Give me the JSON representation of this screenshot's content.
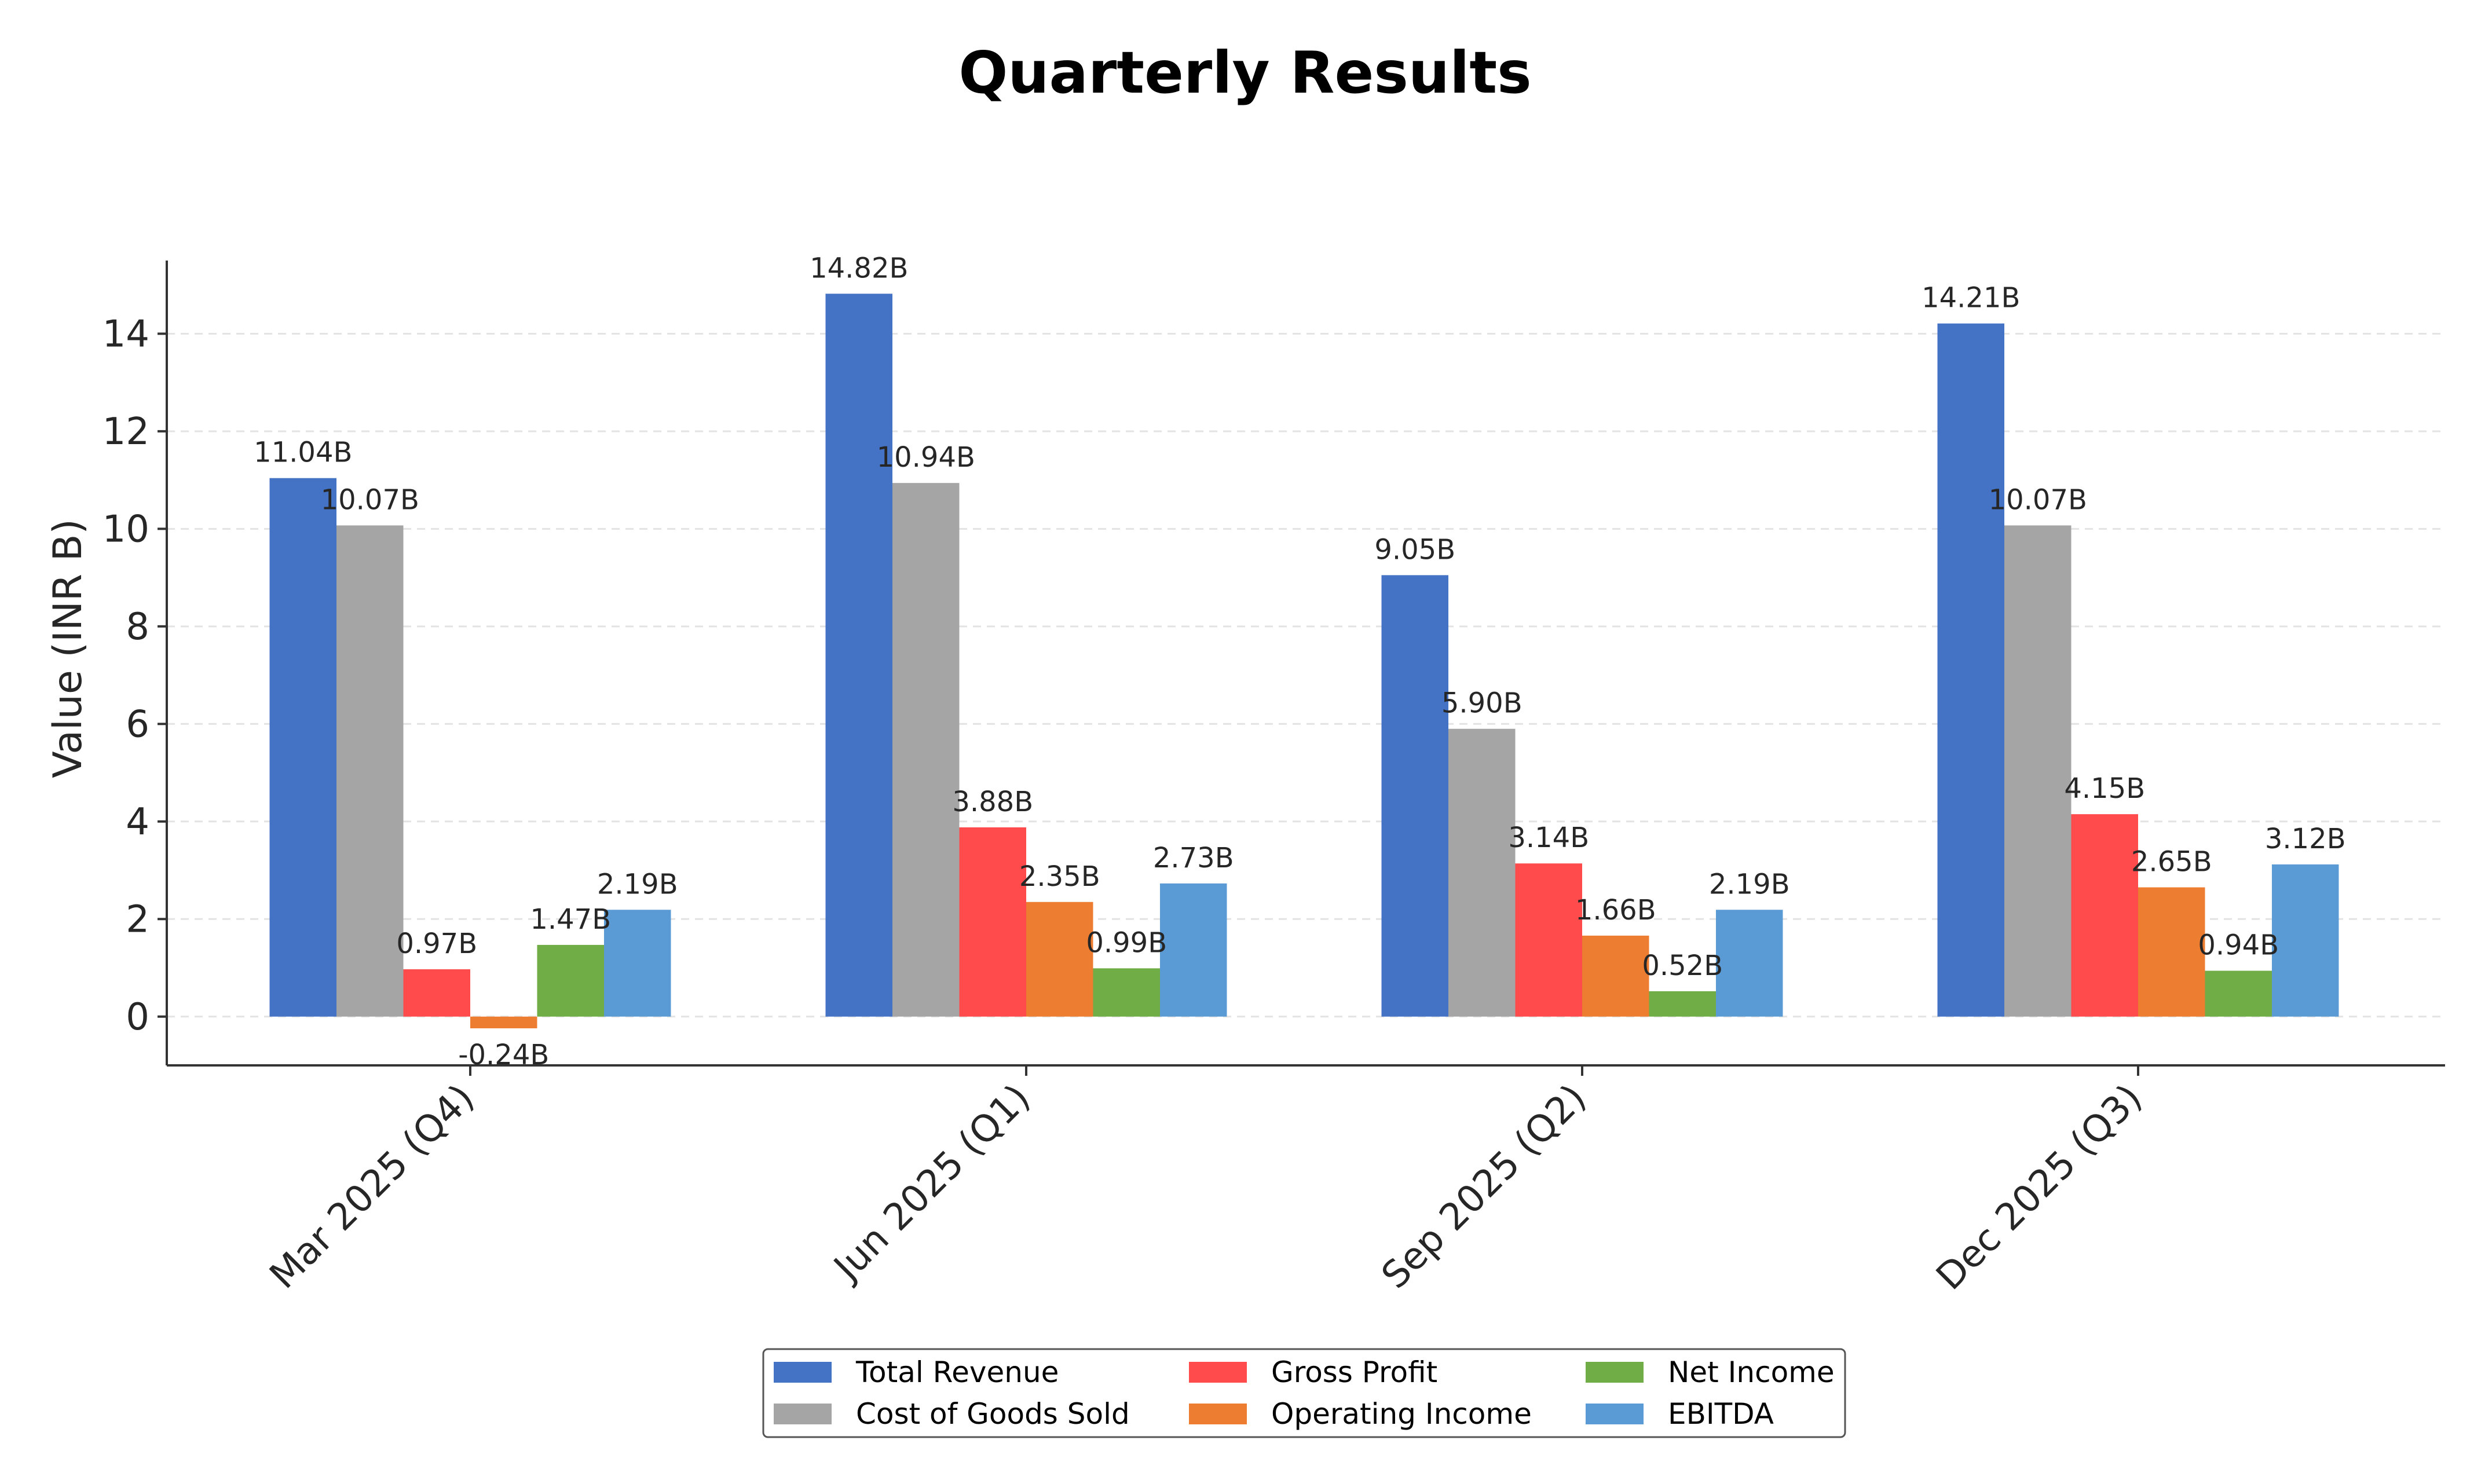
{
  "chart_data": {
    "type": "bar",
    "title": "Quarterly Results",
    "xlabel": "",
    "ylabel": "Value (INR B)",
    "ylim": [
      -1,
      15.5
    ],
    "yticks": [
      0,
      2,
      4,
      6,
      8,
      10,
      12,
      14
    ],
    "grid": "horizontal dashed",
    "legend_position": "bottom-center",
    "categories": [
      "Mar 2025 (Q4)",
      "Jun 2025 (Q1)",
      "Sep 2025 (Q2)",
      "Dec 2025 (Q3)"
    ],
    "series": [
      {
        "name": "Total Revenue",
        "color": "#4472C4",
        "values": [
          11.04,
          14.82,
          9.05,
          14.21
        ],
        "labels": [
          "11.04B",
          "14.82B",
          "9.05B",
          "14.21B"
        ]
      },
      {
        "name": "Cost of Goods Sold",
        "color": "#A5A5A5",
        "values": [
          10.07,
          10.94,
          5.9,
          10.07
        ],
        "labels": [
          "10.07B",
          "10.94B",
          "5.90B",
          "10.07B"
        ]
      },
      {
        "name": "Gross Profit",
        "color": "#FF4B4B",
        "values": [
          0.97,
          3.88,
          3.14,
          4.15
        ],
        "labels": [
          "0.97B",
          "3.88B",
          "3.14B",
          "4.15B"
        ]
      },
      {
        "name": "Operating Income",
        "color": "#ED7D31",
        "values": [
          -0.24,
          2.35,
          1.66,
          2.65
        ],
        "labels": [
          "-0.24B",
          "2.35B",
          "1.66B",
          "2.65B"
        ]
      },
      {
        "name": "Net Income",
        "color": "#70AD47",
        "values": [
          1.47,
          0.99,
          0.52,
          0.94
        ],
        "labels": [
          "1.47B",
          "0.99B",
          "0.52B",
          "0.94B"
        ]
      },
      {
        "name": "EBITDA",
        "color": "#5B9BD5",
        "values": [
          2.19,
          2.73,
          2.19,
          3.12
        ],
        "labels": [
          "2.19B",
          "2.73B",
          "2.19B",
          "3.12B"
        ]
      }
    ]
  }
}
